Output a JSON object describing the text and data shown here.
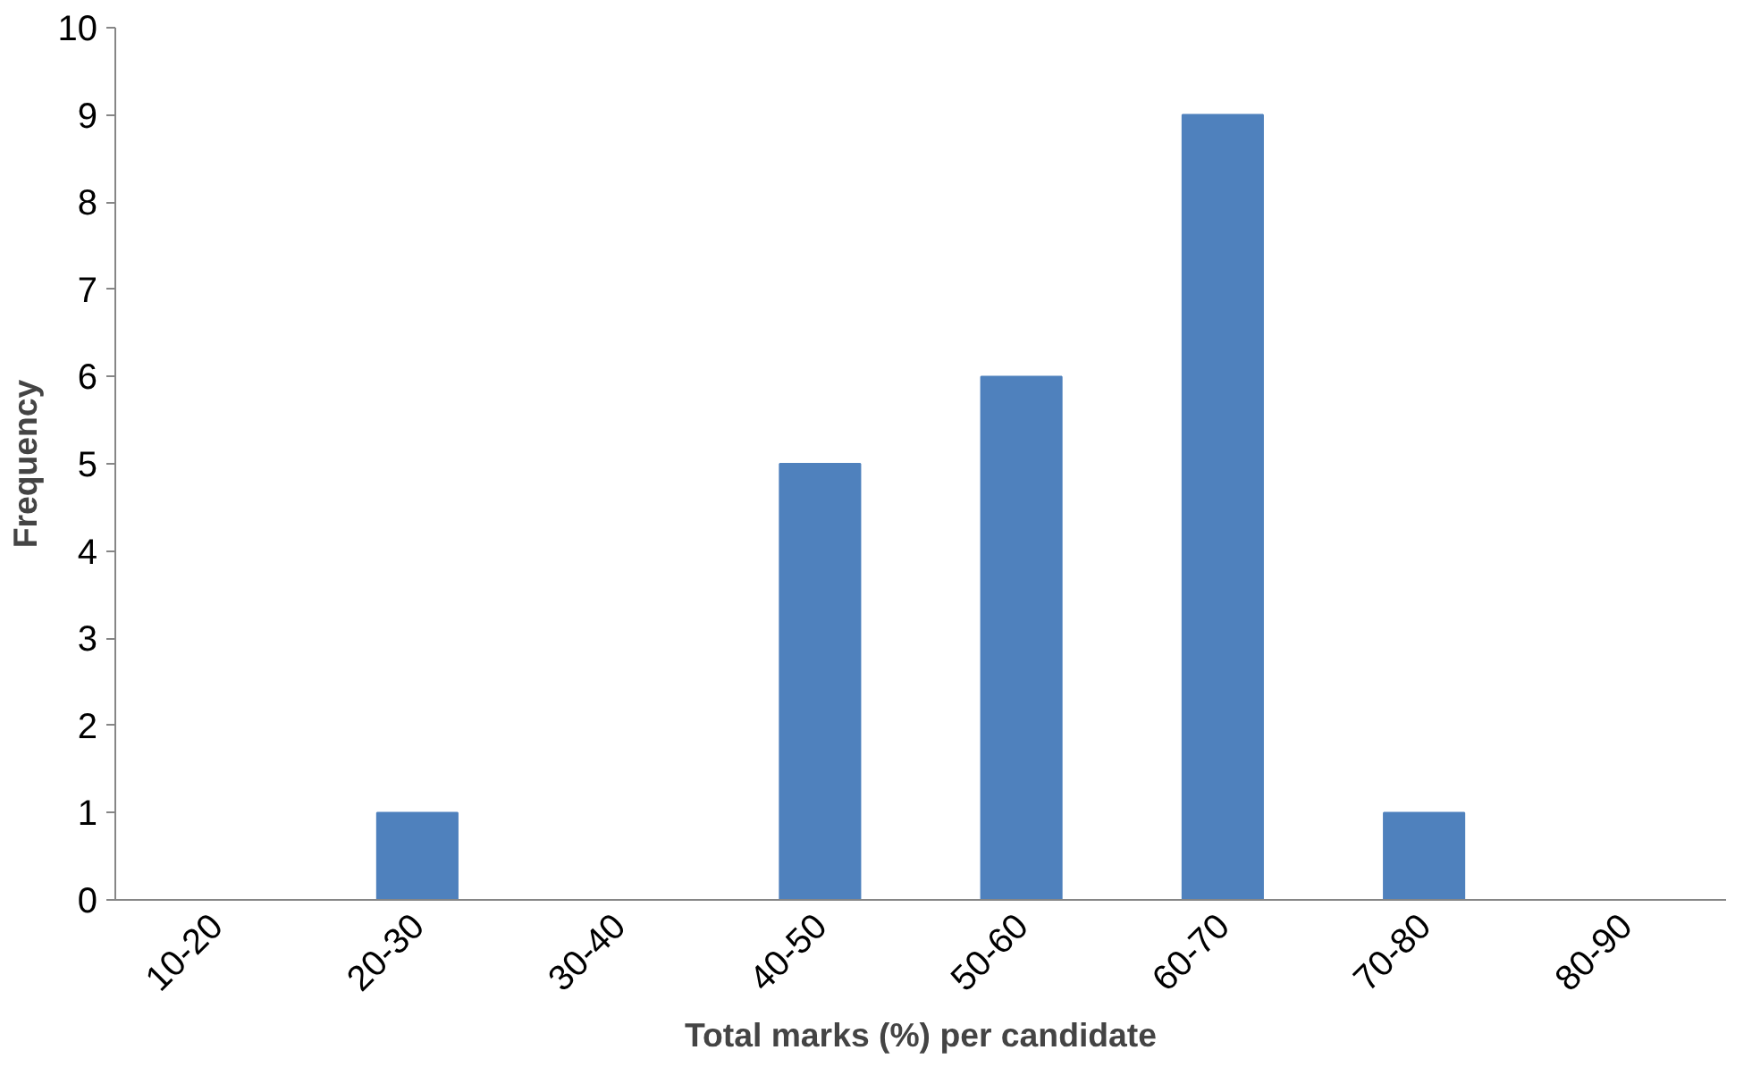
{
  "chart_data": {
    "type": "bar",
    "xlabel": "Total marks (%) per candidate",
    "ylabel": "Frequency",
    "categories": [
      "10-20",
      "20-30",
      "30-40",
      "40-50",
      "50-60",
      "60-70",
      "70-80",
      "80-90"
    ],
    "values": [
      0,
      1,
      0,
      5,
      6,
      9,
      1,
      0
    ],
    "color": "#4f81bd",
    "ylim": [
      0,
      10
    ],
    "yticks": [
      0,
      1,
      2,
      3,
      4,
      5,
      6,
      7,
      8,
      9,
      10
    ]
  }
}
